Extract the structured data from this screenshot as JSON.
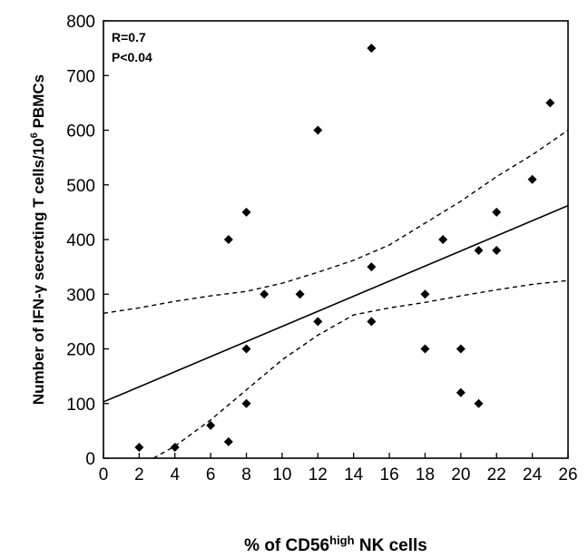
{
  "chart_data": {
    "type": "scatter",
    "title": "",
    "xlabel_parts": [
      "% of CD56",
      "high",
      " NK cells"
    ],
    "ylabel_parts": [
      "Number of IFN-",
      "γ",
      " secreting T cells/10",
      "6",
      " PBMCs"
    ],
    "xlim": [
      0,
      26
    ],
    "ylim": [
      0,
      800
    ],
    "xticks": [
      0,
      2,
      4,
      6,
      8,
      10,
      12,
      14,
      16,
      18,
      20,
      22,
      24,
      26
    ],
    "yticks": [
      0,
      100,
      200,
      300,
      400,
      500,
      600,
      700,
      800
    ],
    "grid": false,
    "stats": [
      "R=0.7",
      "P<0.04"
    ],
    "points": [
      {
        "x": 2,
        "y": 20
      },
      {
        "x": 4,
        "y": 20
      },
      {
        "x": 6,
        "y": 60
      },
      {
        "x": 7,
        "y": 30
      },
      {
        "x": 7,
        "y": 400
      },
      {
        "x": 8,
        "y": 450
      },
      {
        "x": 8,
        "y": 200
      },
      {
        "x": 8,
        "y": 100
      },
      {
        "x": 9,
        "y": 300
      },
      {
        "x": 11,
        "y": 300
      },
      {
        "x": 12,
        "y": 600
      },
      {
        "x": 12,
        "y": 250
      },
      {
        "x": 15,
        "y": 750
      },
      {
        "x": 15,
        "y": 350
      },
      {
        "x": 15,
        "y": 250
      },
      {
        "x": 18,
        "y": 300
      },
      {
        "x": 18,
        "y": 200
      },
      {
        "x": 19,
        "y": 400
      },
      {
        "x": 20,
        "y": 200
      },
      {
        "x": 20,
        "y": 120
      },
      {
        "x": 21,
        "y": 380
      },
      {
        "x": 21,
        "y": 100
      },
      {
        "x": 22,
        "y": 450
      },
      {
        "x": 22,
        "y": 380
      },
      {
        "x": 24,
        "y": 510
      },
      {
        "x": 25,
        "y": 650
      }
    ],
    "fit_line": {
      "x": [
        0,
        26
      ],
      "y": [
        103,
        462
      ]
    },
    "confidence_upper": {
      "x": [
        0,
        2,
        4,
        6,
        8,
        10,
        12,
        14,
        16,
        18,
        20,
        22,
        24,
        26
      ],
      "y": [
        265,
        275,
        287,
        297,
        305,
        320,
        340,
        362,
        390,
        430,
        470,
        515,
        555,
        600
      ]
    },
    "confidence_lower": {
      "x": [
        2.8,
        4,
        6,
        8,
        10,
        12,
        14,
        16,
        18,
        20,
        22,
        24,
        26
      ],
      "y": [
        0,
        22,
        70,
        125,
        180,
        225,
        262,
        275,
        285,
        297,
        308,
        318,
        325
      ]
    }
  }
}
